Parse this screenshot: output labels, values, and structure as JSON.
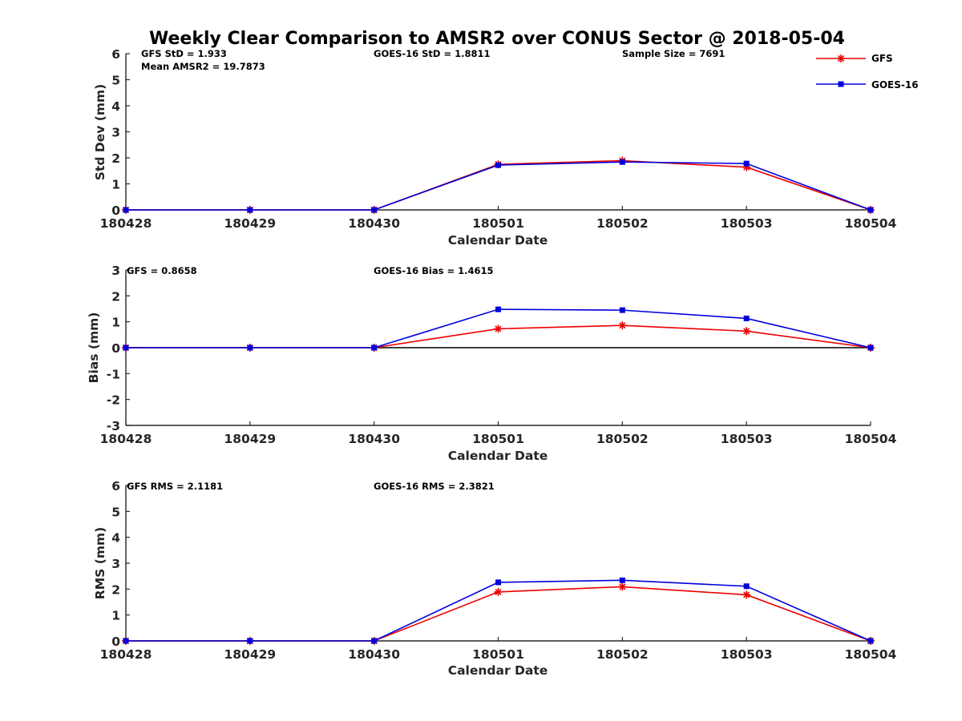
{
  "colors": {
    "gfs": "#ee0000",
    "goes": "#0000dd",
    "axis": "#262626",
    "zero_line": "#000000"
  },
  "chart_data": [
    {
      "id": "std",
      "type": "line",
      "title": "Weekly Clear Comparison to AMSR2 over CONUS Sector @ 2018-05-04",
      "xlabel": "Calendar Date",
      "ylabel": "Std Dev (mm)",
      "categories": [
        "180428",
        "180429",
        "180430",
        "180501",
        "180502",
        "180503",
        "180504"
      ],
      "ylim": [
        0,
        6
      ],
      "yticks": [
        "0",
        "1",
        "2",
        "3",
        "4",
        "5",
        "6"
      ],
      "zero_line": false,
      "series": [
        {
          "name": "GFS",
          "color_key": "gfs",
          "marker": "star",
          "values": [
            0,
            0,
            0,
            1.75,
            1.89,
            1.64,
            0
          ]
        },
        {
          "name": "GOES-16",
          "color_key": "goes",
          "marker": "square",
          "values": [
            0,
            0,
            0,
            1.72,
            1.84,
            1.78,
            0
          ]
        }
      ],
      "annotations": {
        "left": "GFS StD = 1.933",
        "left2": "Mean AMSR2 = 19.7873",
        "mid": "GOES-16 StD = 1.8811",
        "right": "Sample Size = 7691"
      },
      "legend": [
        "GFS",
        "GOES-16"
      ]
    },
    {
      "id": "bias",
      "type": "line",
      "xlabel": "Calendar Date",
      "ylabel": "Bias (mm)",
      "categories": [
        "180428",
        "180429",
        "180430",
        "180501",
        "180502",
        "180503",
        "180504"
      ],
      "ylim": [
        -3,
        3
      ],
      "yticks": [
        "-3",
        "-2",
        "-1",
        "0",
        "1",
        "2",
        "3"
      ],
      "zero_line": true,
      "series": [
        {
          "name": "GFS",
          "color_key": "gfs",
          "marker": "star",
          "values": [
            0,
            0,
            0,
            0.73,
            0.86,
            0.64,
            0
          ]
        },
        {
          "name": "GOES-16",
          "color_key": "goes",
          "marker": "square",
          "values": [
            0,
            0,
            0,
            1.48,
            1.45,
            1.13,
            0
          ]
        }
      ],
      "annotations": {
        "left": "GFS = 0.8658",
        "mid": "GOES-16 Bias  = 1.4615"
      }
    },
    {
      "id": "rms",
      "type": "line",
      "xlabel": "Calendar Date",
      "ylabel": "RMS (mm)",
      "categories": [
        "180428",
        "180429",
        "180430",
        "180501",
        "180502",
        "180503",
        "180504"
      ],
      "ylim": [
        0,
        6
      ],
      "yticks": [
        "0",
        "1",
        "2",
        "3",
        "4",
        "5",
        "6"
      ],
      "zero_line": false,
      "series": [
        {
          "name": "GFS",
          "color_key": "gfs",
          "marker": "star",
          "values": [
            0,
            0,
            0,
            1.89,
            2.09,
            1.78,
            0
          ]
        },
        {
          "name": "GOES-16",
          "color_key": "goes",
          "marker": "square",
          "values": [
            0,
            0,
            0,
            2.26,
            2.34,
            2.11,
            0
          ]
        }
      ],
      "annotations": {
        "left": "GFS RMS = 2.1181",
        "mid": "GOES-16 RMS = 2.3821"
      }
    }
  ]
}
